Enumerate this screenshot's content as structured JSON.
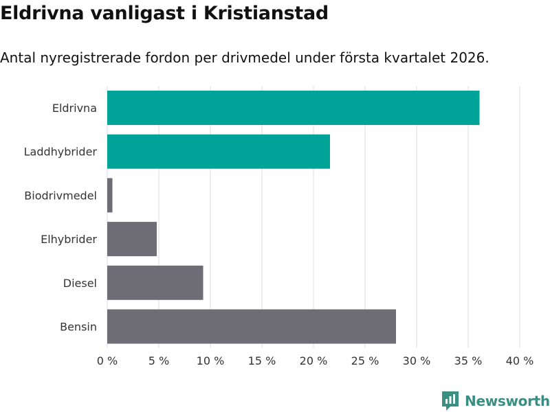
{
  "header": {
    "title": "Eldrivna vanligast i Kristianstad",
    "subtitle": "Antal nyregistrerade fordon per drivmedel under första kvartalet 2026."
  },
  "brand": {
    "name": "Newsworthy",
    "color": "#3a8f82"
  },
  "chart_data": {
    "type": "bar",
    "orientation": "horizontal",
    "title": "Eldrivna vanligast i Kristianstad",
    "subtitle": "Antal nyregistrerade fordon per drivmedel under första kvartalet 2026.",
    "categories": [
      "Eldrivna",
      "Laddhybrider",
      "Biodrivmedel",
      "Elhybrider",
      "Diesel",
      "Bensin"
    ],
    "values": [
      36.1,
      21.6,
      0.5,
      4.8,
      9.3,
      28.0
    ],
    "colors": [
      "#00a398",
      "#00a398",
      "#6e6d75",
      "#6e6d75",
      "#6e6d75",
      "#6e6d75"
    ],
    "xlim": [
      0,
      40
    ],
    "xticks": [
      0,
      5,
      10,
      15,
      20,
      25,
      30,
      35,
      40
    ],
    "xtick_labels": [
      "0 %",
      "5 %",
      "10 %",
      "15 %",
      "20 %",
      "25 %",
      "30 %",
      "35 %",
      "40 %"
    ],
    "xlabel": "",
    "ylabel": "",
    "grid": "vertical"
  }
}
